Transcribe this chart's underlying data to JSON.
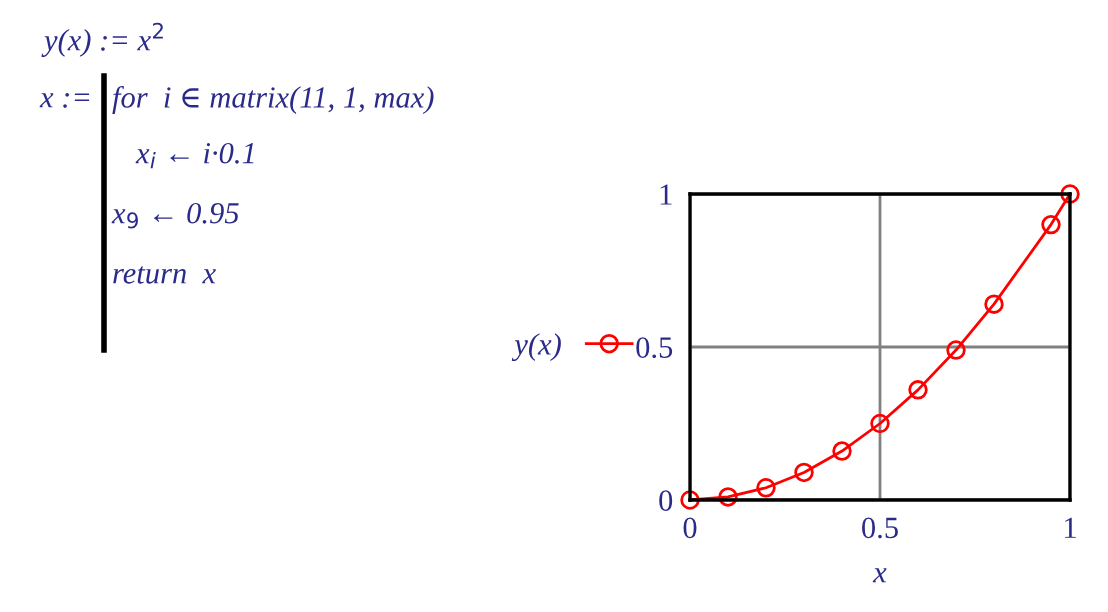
{
  "chart_data": {
    "type": "line",
    "xlabel": "x",
    "x": [
      0,
      0.1,
      0.2,
      0.3,
      0.4,
      0.5,
      0.6,
      0.7,
      0.8,
      0.95,
      1.0
    ],
    "series": [
      {
        "name": "y(x)",
        "color": "#ff0000",
        "values": [
          0,
          0.01,
          0.04,
          0.09,
          0.16,
          0.25,
          0.36,
          0.49,
          0.64,
          0.9,
          1.0
        ]
      }
    ],
    "xlim": [
      0,
      1
    ],
    "ylim": [
      0,
      1
    ],
    "xticks": [
      0,
      0.5,
      1
    ],
    "yticks": [
      0,
      0.5,
      1
    ],
    "grid": true,
    "legend": "left",
    "marker": "circle",
    "line_style": "solid",
    "annotations": [
      "y(x) := x$^{2}$",
      "x :=",
      "for  i ∈ matrix(11, 1, max)",
      "x$_{i}$ ← i·0.1",
      "x$_{9}$ ← 0.95",
      "return  x"
    ]
  }
}
